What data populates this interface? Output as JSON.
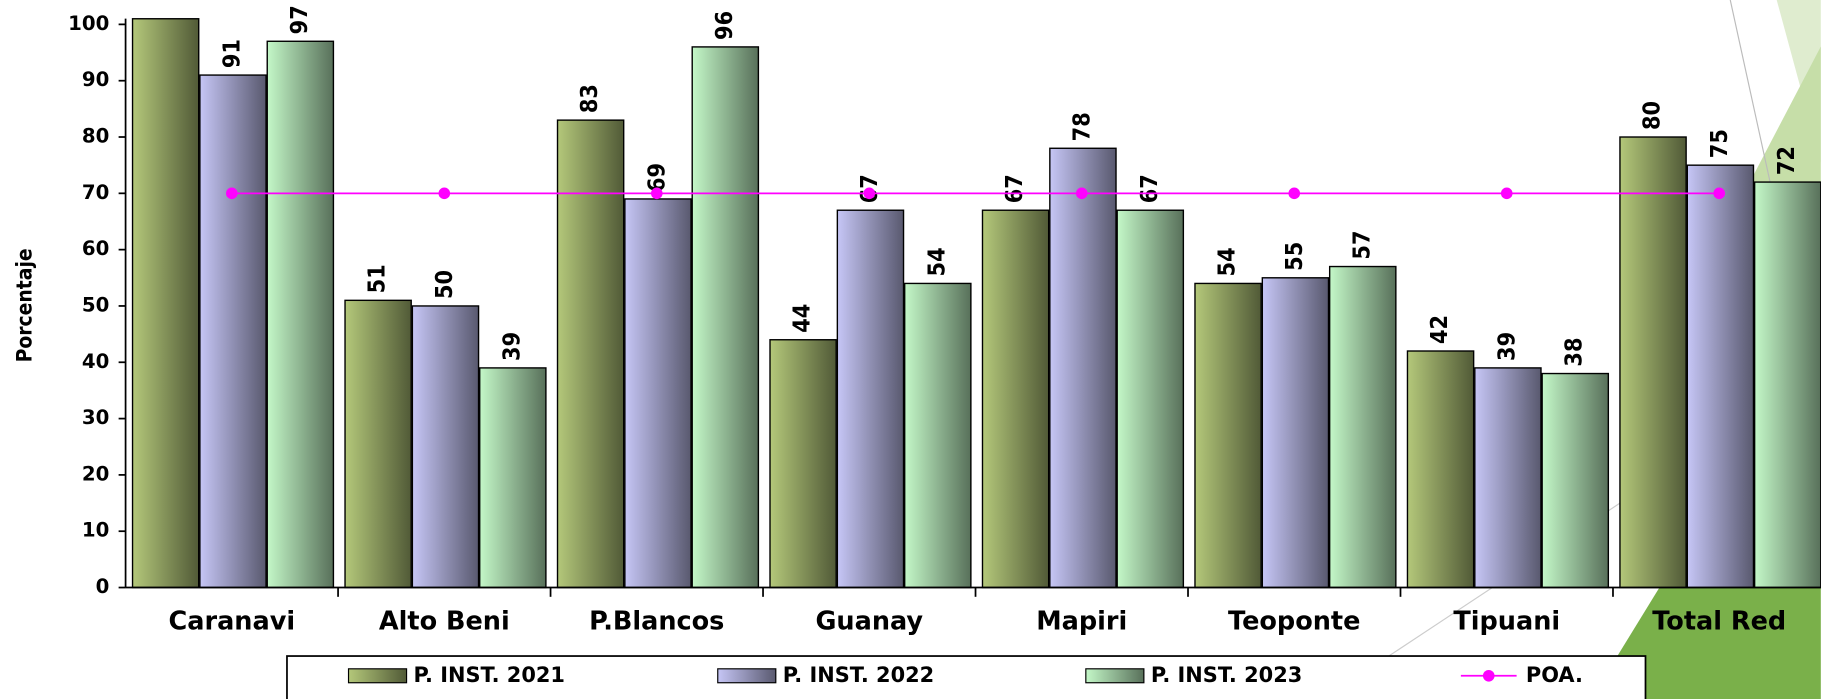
{
  "chart_data": {
    "type": "bar",
    "y_label": "Porcentaje",
    "categories": [
      "Caranavi",
      "Alto Beni",
      "P.Blancos",
      "Guanay",
      "Mapiri",
      "Teoponte",
      "Tipuani",
      "Total Red"
    ],
    "series": [
      {
        "name": "P. INST. 2021",
        "color": "#b4c87a",
        "values": [
          101,
          51,
          83,
          44,
          67,
          54,
          42,
          80
        ]
      },
      {
        "name": "P. INST. 2022",
        "color": "#c6c6f6",
        "values": [
          91,
          50,
          69,
          67,
          78,
          55,
          39,
          75
        ]
      },
      {
        "name": "P. INST. 2023",
        "color": "#c4f8c8",
        "values": [
          97,
          39,
          96,
          54,
          67,
          57,
          38,
          72
        ]
      },
      {
        "name": "POA.",
        "color": "#ff00ff",
        "type": "line",
        "values": [
          70,
          70,
          70,
          70,
          70,
          70,
          70,
          70
        ]
      }
    ],
    "ylim": [
      0,
      100
    ],
    "yticks": [
      0,
      10,
      20,
      30,
      40,
      50,
      60,
      70,
      80,
      90,
      100
    ]
  }
}
